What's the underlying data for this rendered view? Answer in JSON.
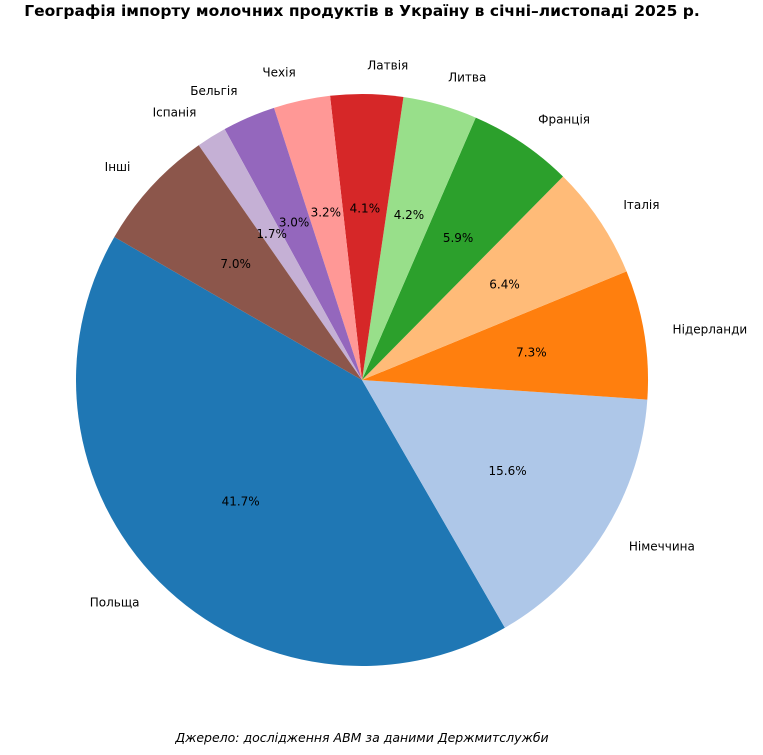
{
  "chart_data": {
    "type": "pie",
    "title": "Географія імпорту молочних продуктів в Україну в січні–листопаді 2025 р.",
    "source": "Джерело: дослідження АВМ за даними Держмитслужби",
    "start_angle_deg": 150,
    "direction": "counterclockwise",
    "slices": [
      {
        "label": "Польща",
        "value": 41.7,
        "pct_label": "41.7%",
        "color": "#1f77b4"
      },
      {
        "label": "Німеччина",
        "value": 15.6,
        "pct_label": "15.6%",
        "color": "#aec7e8"
      },
      {
        "label": "Нідерланди",
        "value": 7.3,
        "pct_label": "7.3%",
        "color": "#ff7f0e"
      },
      {
        "label": "Італія",
        "value": 6.4,
        "pct_label": "6.4%",
        "color": "#ffbb78"
      },
      {
        "label": "Франція",
        "value": 5.9,
        "pct_label": "5.9%",
        "color": "#2ca02c"
      },
      {
        "label": "Литва",
        "value": 4.2,
        "pct_label": "4.2%",
        "color": "#98df8a"
      },
      {
        "label": "Латвія",
        "value": 4.1,
        "pct_label": "4.1%",
        "color": "#d62728"
      },
      {
        "label": "Чехія",
        "value": 3.2,
        "pct_label": "3.2%",
        "color": "#ff9896"
      },
      {
        "label": "Бельгія",
        "value": 3.0,
        "pct_label": "3.0%",
        "color": "#9467bd"
      },
      {
        "label": "Іспанія",
        "value": 1.7,
        "pct_label": "1.7%",
        "color": "#c5b0d5"
      },
      {
        "label": "Інші",
        "value": 7.0,
        "pct_label": "7.0%",
        "color": "#8c564b"
      }
    ]
  }
}
